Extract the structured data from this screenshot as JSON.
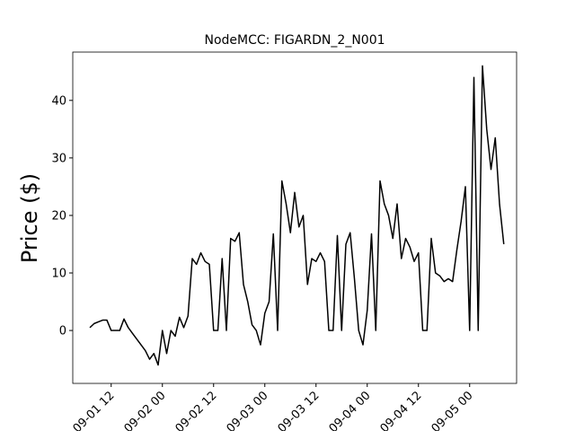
{
  "chart_data": {
    "type": "line",
    "title": "NodeMCC: FIGARDN_2_N001",
    "y_label": "Price ($)",
    "x": [
      "09-01 07",
      "09-01 08",
      "09-01 09",
      "09-01 10",
      "09-01 11",
      "09-01 12",
      "09-01 13",
      "09-01 14",
      "09-01 15",
      "09-01 16",
      "09-01 17",
      "09-01 18",
      "09-01 19",
      "09-01 20",
      "09-01 21",
      "09-01 22",
      "09-01 23",
      "09-02 00",
      "09-02 01",
      "09-02 02",
      "09-02 03",
      "09-02 04",
      "09-02 05",
      "09-02 06",
      "09-02 07",
      "09-02 08",
      "09-02 09",
      "09-02 10",
      "09-02 11",
      "09-02 12",
      "09-02 13",
      "09-02 14",
      "09-02 15",
      "09-02 16",
      "09-02 17",
      "09-02 18",
      "09-02 19",
      "09-02 20",
      "09-02 21",
      "09-02 22",
      "09-02 23",
      "09-03 00",
      "09-03 01",
      "09-03 02",
      "09-03 03",
      "09-03 04",
      "09-03 05",
      "09-03 06",
      "09-03 07",
      "09-03 08",
      "09-03 09",
      "09-03 10",
      "09-03 11",
      "09-03 12",
      "09-03 13",
      "09-03 14",
      "09-03 15",
      "09-03 16",
      "09-03 17",
      "09-03 18",
      "09-03 19",
      "09-03 20",
      "09-03 21",
      "09-03 22",
      "09-03 23",
      "09-04 00",
      "09-04 01",
      "09-04 02",
      "09-04 03",
      "09-04 04",
      "09-04 05",
      "09-04 06",
      "09-04 07",
      "09-04 08",
      "09-04 09",
      "09-04 10",
      "09-04 11",
      "09-04 12",
      "09-04 13",
      "09-04 14",
      "09-04 15",
      "09-04 16",
      "09-04 17",
      "09-04 18",
      "09-04 19",
      "09-04 20",
      "09-04 21",
      "09-04 22",
      "09-04 23",
      "09-05 00",
      "09-05 01",
      "09-05 02",
      "09-05 03",
      "09-05 04",
      "09-05 05",
      "09-05 06",
      "09-05 07",
      "09-05 08"
    ],
    "series": [
      {
        "color": "#000000",
        "values": [
          0.5,
          1.2,
          1.5,
          1.8,
          1.8,
          0,
          0,
          0,
          2,
          0.5,
          -0.5,
          -1.5,
          -2.5,
          -3.5,
          -5,
          -4,
          -6,
          0,
          -4,
          0,
          -1,
          2.3,
          0.5,
          2.5,
          12.5,
          11.5,
          13.5,
          12,
          11.5,
          0,
          0,
          12.5,
          0,
          16,
          15.5,
          17,
          8,
          5,
          1,
          0,
          -2.5,
          3,
          5,
          16.8,
          0,
          26,
          22,
          17,
          24,
          18,
          20,
          8,
          12.5,
          12,
          13.5,
          12,
          0,
          0,
          16.5,
          0,
          15,
          17,
          9,
          0,
          -2.5,
          3.5,
          16.8,
          0,
          26,
          22,
          20,
          16,
          22,
          12.5,
          16,
          14.5,
          12,
          13.5,
          0,
          0,
          16,
          10,
          9.5,
          8.5,
          9,
          8.5,
          14,
          19,
          25,
          0,
          44,
          0,
          46,
          35,
          28,
          33.5,
          22,
          15
        ]
      }
    ],
    "xlim": [
      "09-01 03",
      "09-05 11"
    ],
    "xticks": [
      "09-01 12",
      "09-02 00",
      "09-02 12",
      "09-03 00",
      "09-03 12",
      "09-04 00",
      "09-04 12",
      "09-05 00"
    ],
    "ylim": [
      -9.2,
      48.4
    ],
    "yticks": [
      0,
      10,
      20,
      30,
      40
    ]
  }
}
